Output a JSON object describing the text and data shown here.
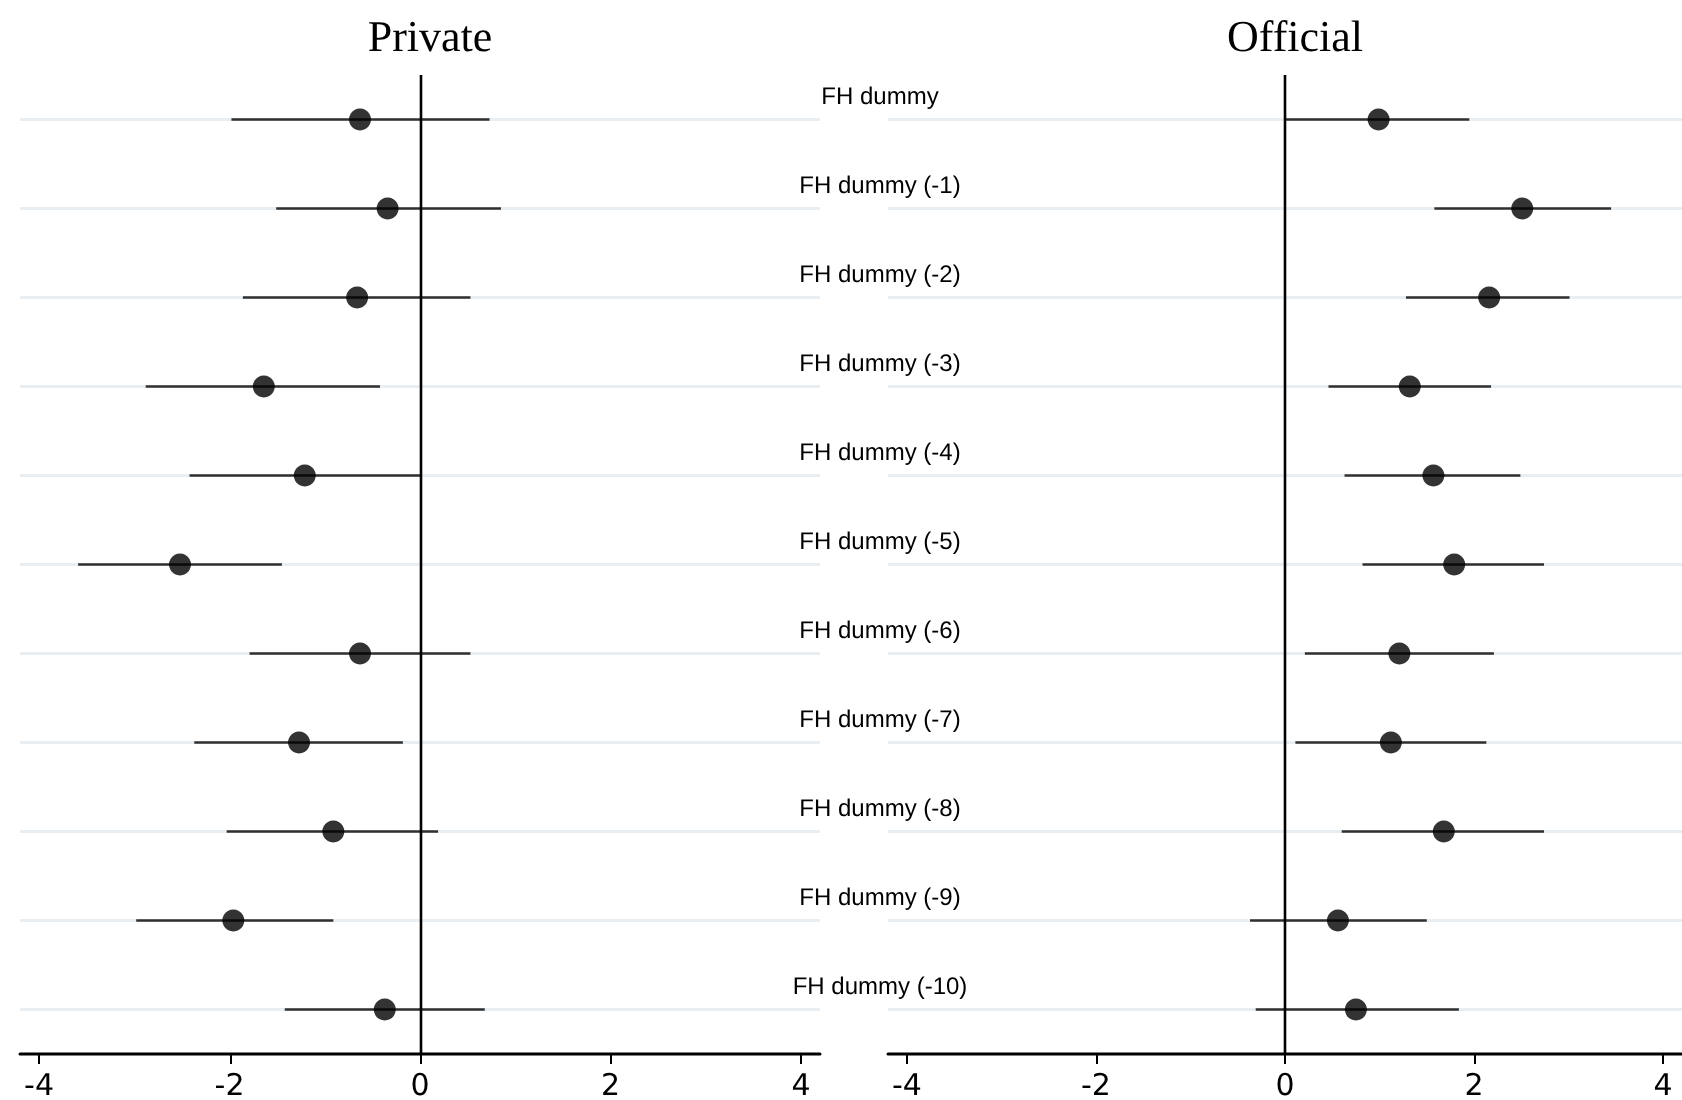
{
  "chart_data": [
    {
      "type": "scatter",
      "title": "Private",
      "orientation": "horizontal",
      "categories": [
        null,
        null,
        null,
        null,
        null,
        null,
        null,
        null,
        null,
        null,
        null
      ],
      "values": [
        -0.63,
        -0.34,
        -0.66,
        -1.64,
        -1.21,
        -2.52,
        -0.63,
        -1.27,
        -0.91,
        -1.96,
        -0.37
      ],
      "errors": [
        [
          -1.98,
          0.73
        ],
        [
          -1.51,
          0.85
        ],
        [
          -1.86,
          0.53
        ],
        [
          -2.88,
          -0.42
        ],
        [
          -2.42,
          0.0
        ],
        [
          -3.59,
          -1.45
        ],
        [
          -1.79,
          0.53
        ],
        [
          -2.37,
          -0.18
        ],
        [
          -2.03,
          0.19
        ],
        [
          -2.98,
          -0.91
        ],
        [
          -1.42,
          0.68
        ]
      ],
      "color": "#000000",
      "marker": "circle",
      "xlim": [
        -4.2,
        4.2
      ],
      "xticks": [
        -4,
        -2,
        0,
        2,
        4
      ],
      "grid": "y",
      "ref_lines": [
        {
          "axis": "x",
          "value": 0,
          "color": "#000000"
        }
      ]
    },
    {
      "type": "scatter",
      "title": "Official",
      "orientation": "horizontal",
      "categories": [
        "FH dummy",
        "FH dummy (-1)",
        "FH dummy (-2)",
        "FH dummy (-3)",
        "FH dummy (-4)",
        "FH dummy (-5)",
        "FH dummy (-6)",
        "FH dummy (-7)",
        "FH dummy (-8)",
        "FH dummy (-9)",
        "FH dummy (-10)"
      ],
      "values": [
        0.99,
        2.51,
        2.16,
        1.32,
        1.57,
        1.79,
        1.21,
        1.12,
        1.68,
        0.56,
        0.75
      ],
      "errors": [
        [
          0.0,
          1.95
        ],
        [
          1.58,
          3.45
        ],
        [
          1.28,
          3.01
        ],
        [
          0.46,
          2.18
        ],
        [
          0.63,
          2.49
        ],
        [
          0.82,
          2.74
        ],
        [
          0.21,
          2.21
        ],
        [
          0.11,
          2.13
        ],
        [
          0.6,
          2.74
        ],
        [
          -0.37,
          1.5
        ],
        [
          -0.31,
          1.84
        ]
      ],
      "color": "#000000",
      "marker": "circle",
      "xlim": [
        -4.2,
        4.2
      ],
      "xticks": [
        -4,
        -2,
        0,
        2,
        4
      ],
      "grid": "y",
      "ref_lines": [
        {
          "axis": "x",
          "value": 0,
          "color": "#000000"
        }
      ]
    }
  ]
}
